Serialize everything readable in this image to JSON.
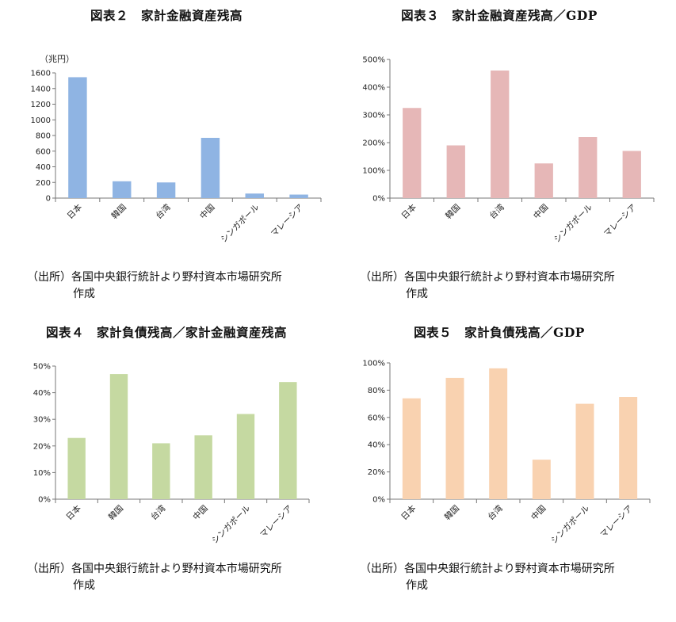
{
  "charts": [
    {
      "title": "図表２　家計金融資産残高",
      "source_line1": "（出所）各国中央銀行統計より野村資本市場研究所",
      "source_line2": "作成",
      "color": "#8fb4e3",
      "unit_label": "（兆円）",
      "chart_data": {
        "type": "bar",
        "categories": [
          "日本",
          "韓国",
          "台湾",
          "中国",
          "シンガポール",
          "マレーシア"
        ],
        "values": [
          1545,
          215,
          200,
          770,
          58,
          45
        ],
        "ylim": [
          0,
          1600
        ],
        "ytick_step": 200,
        "ytick_labels": [
          "0",
          "200",
          "400",
          "600",
          "800",
          "1000",
          "1200",
          "1400",
          "1600"
        ]
      }
    },
    {
      "title": "図表３　家計金融資産残高／GDP",
      "source_line1": "（出所）各国中央銀行統計より野村資本市場研究所",
      "source_line2": "作成",
      "color": "#e6b7b7",
      "unit_label": "",
      "chart_data": {
        "type": "bar",
        "categories": [
          "日本",
          "韓国",
          "台湾",
          "中国",
          "シンガポール",
          "マレーシア"
        ],
        "values": [
          325,
          190,
          460,
          125,
          220,
          170
        ],
        "ylim": [
          0,
          500
        ],
        "ytick_step": 100,
        "ytick_labels": [
          "0%",
          "100%",
          "200%",
          "300%",
          "400%",
          "500%"
        ]
      }
    },
    {
      "title": "図表４　家計負債残高／家計金融資産残高",
      "source_line1": "（出所）各国中央銀行統計より野村資本市場研究所",
      "source_line2": "作成",
      "color": "#c5d9a1",
      "unit_label": "",
      "chart_data": {
        "type": "bar",
        "categories": [
          "日本",
          "韓国",
          "台湾",
          "中国",
          "シンガポール",
          "マレーシア"
        ],
        "values": [
          23,
          47,
          21,
          24,
          32,
          44
        ],
        "ylim": [
          0,
          50
        ],
        "ytick_step": 10,
        "ytick_labels": [
          "0%",
          "10%",
          "20%",
          "30%",
          "40%",
          "50%"
        ]
      }
    },
    {
      "title": "図表５　家計負債残高／GDP",
      "source_line1": "（出所）各国中央銀行統計より野村資本市場研究所",
      "source_line2": "作成",
      "color": "#f9d2b0",
      "unit_label": "",
      "chart_data": {
        "type": "bar",
        "categories": [
          "日本",
          "韓国",
          "台湾",
          "中国",
          "シンガポール",
          "マレーシア"
        ],
        "values": [
          74,
          89,
          96,
          29,
          70,
          75
        ],
        "ylim": [
          0,
          100
        ],
        "ytick_step": 20,
        "ytick_labels": [
          "0%",
          "20%",
          "40%",
          "60%",
          "80%",
          "100%"
        ]
      }
    }
  ]
}
